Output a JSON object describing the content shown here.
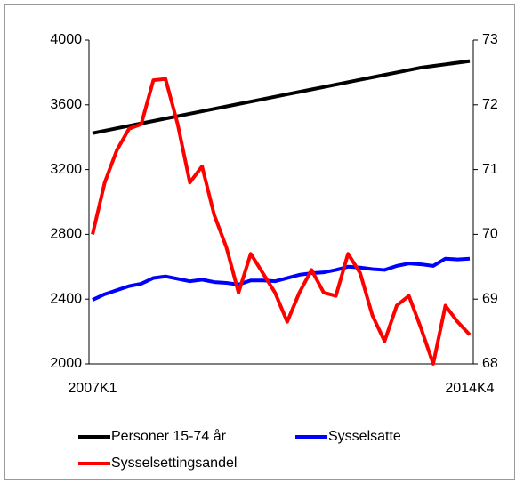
{
  "chart_data": {
    "type": "line",
    "categories": [
      "2007K1",
      null,
      null,
      null,
      null,
      null,
      null,
      null,
      null,
      null,
      null,
      null,
      null,
      null,
      null,
      null,
      null,
      null,
      null,
      null,
      null,
      null,
      null,
      null,
      null,
      null,
      null,
      null,
      null,
      null,
      null,
      "2014K4"
    ],
    "series": [
      {
        "name": "Personer 15-74 år",
        "color": "#000000",
        "values": [
          3425,
          3440,
          3455,
          3470,
          3485,
          3500,
          3515,
          3530,
          3545,
          3560,
          3575,
          3590,
          3605,
          3620,
          3635,
          3650,
          3665,
          3680,
          3695,
          3710,
          3725,
          3740,
          3755,
          3770,
          3785,
          3800,
          3815,
          3830,
          3840,
          3850,
          3860,
          3870
        ]
      },
      {
        "name": "Sysselsatte",
        "color": "#0000ff",
        "values": [
          2395,
          2430,
          2455,
          2480,
          2495,
          2530,
          2540,
          2525,
          2510,
          2520,
          2505,
          2500,
          2490,
          2515,
          2515,
          2510,
          2530,
          2550,
          2560,
          2565,
          2580,
          2600,
          2595,
          2585,
          2580,
          2605,
          2620,
          2615,
          2605,
          2650,
          2645,
          2650
        ]
      },
      {
        "name": "Sysselsettingsandel",
        "color": "#ff0000",
        "axis": "y2",
        "values": [
          70.0,
          70.8,
          71.3,
          71.63,
          71.7,
          72.38,
          72.4,
          71.7,
          70.8,
          71.05,
          70.3,
          69.8,
          69.1,
          69.7,
          69.4,
          69.1,
          68.65,
          69.1,
          69.45,
          69.1,
          69.05,
          69.7,
          69.4,
          68.75,
          68.35,
          68.9,
          69.05,
          68.55,
          68.0,
          68.9,
          68.65,
          68.45
        ]
      }
    ],
    "ylim": [
      2000,
      4000
    ],
    "yticks": [
      2000,
      2400,
      2800,
      3200,
      3600,
      4000
    ],
    "y2lim": [
      68,
      73
    ],
    "y2ticks": [
      68,
      69,
      70,
      71,
      72,
      73
    ],
    "grid": false
  }
}
